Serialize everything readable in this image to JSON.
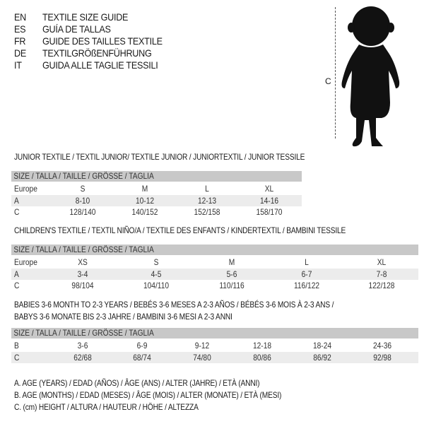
{
  "languages": [
    {
      "code": "EN",
      "title": "TEXTILE SIZE GUIDE"
    },
    {
      "code": "ES",
      "title": "GUÍA DE TALLAS"
    },
    {
      "code": "FR",
      "title": "GUIDE DES TAILLES TEXTILE"
    },
    {
      "code": "DE",
      "title": "TEXTILGRÖßENFÜHRUNG"
    },
    {
      "code": "IT",
      "title": "GUIDA ALLE TAGLIE TESSILI"
    }
  ],
  "figure": {
    "label": "C"
  },
  "junior": {
    "title": "JUNIOR TEXTILE / TEXTIL JUNIOR/ TEXTILE JUNIOR / JUNIORTEXTIL / JUNIOR TESSILE",
    "header": "SIZE / TALLA / TAILLE / GRÖSSE / TAGLIA",
    "rows": [
      {
        "label": "Europe",
        "values": [
          "S",
          "M",
          "L",
          "XL"
        ]
      },
      {
        "label": "A",
        "values": [
          "8-10",
          "10-12",
          "12-13",
          "14-16"
        ]
      },
      {
        "label": "C",
        "values": [
          "128/140",
          "140/152",
          "152/158",
          "158/170"
        ]
      }
    ]
  },
  "children": {
    "title": "CHILDREN'S TEXTILE / TEXTIL NIÑO/A / TEXTILE DES ENFANTS / KINDERTEXTIL / BAMBINI TESSILE",
    "header": "SIZE / TALLA / TAILLE / GRÖSSE / TAGLIA",
    "rows": [
      {
        "label": "Europe",
        "values": [
          "XS",
          "S",
          "M",
          "L",
          "XL"
        ]
      },
      {
        "label": "A",
        "values": [
          "3-4",
          "4-5",
          "5-6",
          "6-7",
          "7-8"
        ]
      },
      {
        "label": "C",
        "values": [
          "98/104",
          "104/110",
          "110/116",
          "116/122",
          "122/128"
        ]
      }
    ]
  },
  "babies": {
    "title_line1": "BABIES 3-6 MONTH TO 2-3 YEARS / BEBÉS 3-6 MESES A 2-3 AÑOS / BÉBÉS 3-6 MOIS À 2-3 ANS /",
    "title_line2": "BABYS 3-6 MONATE BIS 2-3 JAHRE / BAMBINI 3-6 MESI A 2-3 ANNI",
    "header": "SIZE / TALLA / TAILLE / GRÖSSE / TAGLIA",
    "rows": [
      {
        "label": "B",
        "values": [
          "3-6",
          "6-9",
          "9-12",
          "12-18",
          "18-24",
          "24-36"
        ]
      },
      {
        "label": "C",
        "values": [
          "62/68",
          "68/74",
          "74/80",
          "80/86",
          "86/92",
          "92/98"
        ]
      }
    ]
  },
  "legend": [
    "A. AGE (YEARS) / EDAD (AÑOS) / ÂGE (ANS) / ALTER (JAHRE) / ETÀ (ANNI)",
    "B. AGE (MONTHS) / EDAD (MESES) / ÂGE (MOIS) / ALTER (MONATE) / ETÀ (MESI)",
    "C. (cm) HEIGHT / ALTURA / HAUTEUR / HÖHE / ALTEZZA"
  ]
}
